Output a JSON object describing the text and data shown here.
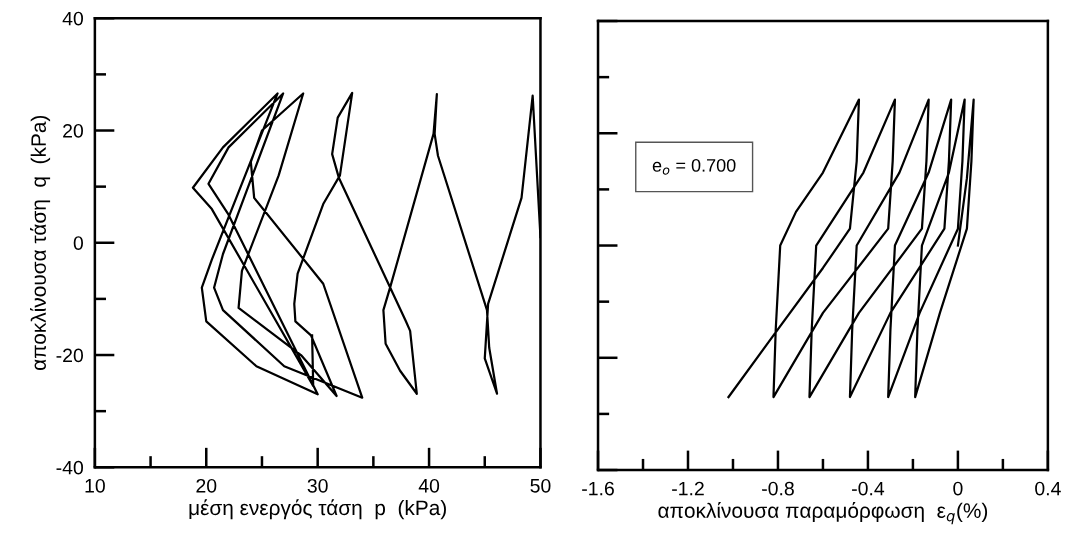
{
  "chart_data": [
    {
      "type": "line",
      "xlabel": "μέση ενεργός τάση  p  (kPa)",
      "ylabel": "αποκλίνουσα τάση  q  (kPa)",
      "xlim": [
        10,
        50
      ],
      "xticks": [
        10,
        20,
        30,
        40,
        50
      ],
      "ylim": [
        -40,
        40
      ],
      "yticks": [
        -40,
        -20,
        0,
        20,
        40
      ],
      "grid": false,
      "legend": false,
      "marker": "none",
      "line_style": "solid",
      "series": [
        {
          "color": "#000000",
          "x": [
            50.0,
            49.3,
            48.3,
            45.3,
            45.0,
            46.1,
            45.4,
            45.2,
            40.8,
            40.5,
            40.7,
            40.4,
            36.5,
            35.9,
            36.1,
            37.4,
            38.9,
            38.3,
            37.9,
            31.9,
            31.3,
            31.8,
            33.1,
            32.0,
            30.5,
            28.2,
            27.9,
            28.0,
            29.4,
            31.7,
            28.5,
            24.5,
            22.9,
            23.2,
            26.5,
            28.7,
            25.0,
            24.0,
            24.3,
            30.5,
            34.0,
            27.0,
            21.5,
            20.7,
            21.5,
            26.9,
            22.0,
            20.2,
            22.0,
            30.0,
            24.5,
            20.0,
            19.6,
            20.5,
            26.4,
            21.5,
            18.8,
            20.5,
            29.6,
            29.5
          ],
          "values": [
            1,
            26.2,
            8,
            -10.9,
            -20.6,
            -26.9,
            -18.7,
            -12,
            15.5,
            19.4,
            26.5,
            19.4,
            -8,
            -12,
            -18,
            -22.8,
            -26.9,
            -15.7,
            -13.9,
            11.6,
            15.8,
            22.3,
            26.7,
            12,
            6.9,
            -5.5,
            -10.9,
            -14,
            -16.5,
            -27.3,
            -20,
            -14,
            -11.6,
            -5,
            12,
            26.6,
            20,
            14.4,
            8,
            -7.3,
            -27.6,
            -22,
            -12,
            -8,
            -2,
            26.6,
            17,
            10.5,
            5,
            -27,
            -22,
            -14,
            -8,
            -3,
            26.6,
            17,
            9.8,
            6,
            -25.5,
            -16.5
          ]
        }
      ]
    },
    {
      "type": "line",
      "xlabel": "αποκλίνουσα παραμόρφωση  ε$_{q}$(%)",
      "xlim": [
        -1.6,
        0.4
      ],
      "xticks": [
        -1.6,
        -1.2,
        -0.8,
        -0.4,
        0,
        0.4
      ],
      "ylim": [
        -40,
        40
      ],
      "yticks": [
        -40,
        -20,
        0,
        20,
        40
      ],
      "tick_labels": "x",
      "grid": false,
      "legend": false,
      "marker": "none",
      "line_style": "solid",
      "annotations": [
        "e$_{o}$ = 0.700"
      ],
      "series": [
        {
          "color": "#000000",
          "x": [
            0,
            0.04,
            0.07,
            0.06,
            0.04,
            -0.08,
            -0.19,
            -0.18,
            -0.16,
            -0.04,
            0.03,
            0.02,
            0.0,
            -0.17,
            -0.31,
            -0.3,
            -0.28,
            -0.13,
            -0.03,
            -0.04,
            -0.06,
            -0.3,
            -0.48,
            -0.47,
            -0.45,
            -0.26,
            -0.13,
            -0.14,
            -0.16,
            -0.44,
            -0.66,
            -0.65,
            -0.63,
            -0.42,
            -0.28,
            -0.29,
            -0.31,
            -0.6,
            -0.82,
            -0.81,
            -0.79,
            -0.72,
            -0.6,
            -0.44,
            -0.45,
            -0.48,
            -0.6,
            -0.82,
            -1.02
          ],
          "values": [
            0,
            12,
            26,
            15,
            3,
            -12,
            -27,
            -15,
            0,
            13,
            26,
            15,
            3,
            -12,
            -27,
            -15,
            0,
            13,
            26,
            15,
            3,
            -12,
            -27,
            -15,
            0,
            13,
            26,
            15,
            3,
            -12,
            -27,
            -15,
            0,
            13,
            26,
            15,
            3,
            -12,
            -27,
            -15,
            0,
            6,
            13,
            26,
            15,
            3,
            -4,
            -16,
            -27
          ]
        }
      ]
    }
  ]
}
